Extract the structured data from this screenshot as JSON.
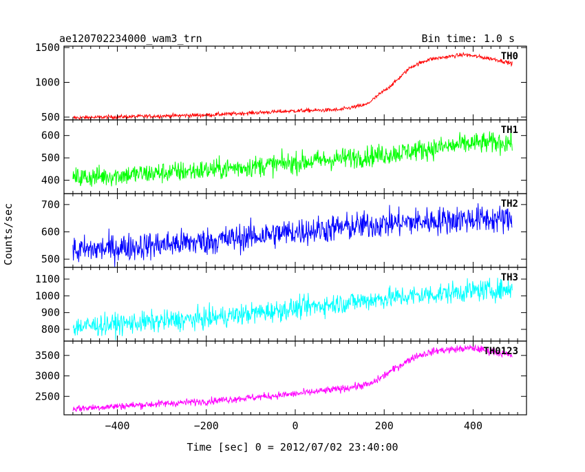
{
  "chart_data": {
    "type": "line",
    "title": "ae120702234000_wam3_trn",
    "subtitle": "Bin time: 1.0 s",
    "xlabel": "Time [sec] 0 = 2012/07/02 23:40:00",
    "ylabel": "Counts/sec",
    "xlim": [
      -520,
      520
    ],
    "xticks": [
      -400,
      -200,
      0,
      200,
      400
    ],
    "xtick_labels": [
      "−400",
      "−200",
      "0",
      "200",
      "400"
    ],
    "x_range": [
      -500,
      488
    ],
    "grid": false,
    "panels": [
      {
        "name": "TH0",
        "color": "#ff0000",
        "ylim": [
          460,
          1520
        ],
        "yticks": [
          500,
          1000,
          1500
        ],
        "ytick_labels": [
          "500",
          "1000",
          "1500"
        ],
        "noise": 14,
        "trend": [
          [
            -500,
            490
          ],
          [
            -200,
            530
          ],
          [
            0,
            590
          ],
          [
            100,
            605
          ],
          [
            160,
            680
          ],
          [
            220,
            980
          ],
          [
            260,
            1220
          ],
          [
            300,
            1330
          ],
          [
            380,
            1400
          ],
          [
            450,
            1330
          ],
          [
            488,
            1270
          ]
        ]
      },
      {
        "name": "TH1",
        "color": "#00ff00",
        "ylim": [
          340,
          670
        ],
        "yticks": [
          400,
          500,
          600
        ],
        "ytick_labels": [
          "400",
          "500",
          "600"
        ],
        "noise": 24,
        "trend": [
          [
            -500,
            410
          ],
          [
            -200,
            445
          ],
          [
            0,
            478
          ],
          [
            200,
            515
          ],
          [
            400,
            565
          ],
          [
            488,
            570
          ]
        ]
      },
      {
        "name": "TH2",
        "color": "#0000ff",
        "ylim": [
          470,
          740
        ],
        "yticks": [
          500,
          600,
          700
        ],
        "ytick_labels": [
          "500",
          "600",
          "700"
        ],
        "noise": 26,
        "trend": [
          [
            -500,
            530
          ],
          [
            -200,
            565
          ],
          [
            0,
            600
          ],
          [
            200,
            630
          ],
          [
            400,
            648
          ],
          [
            488,
            645
          ]
        ]
      },
      {
        "name": "TH3",
        "color": "#00ffff",
        "ylim": [
          730,
          1170
        ],
        "yticks": [
          800,
          900,
          1000,
          1100
        ],
        "ytick_labels": [
          "800",
          "900",
          "1000",
          "1100"
        ],
        "noise": 32,
        "trend": [
          [
            -500,
            815
          ],
          [
            -200,
            865
          ],
          [
            0,
            925
          ],
          [
            200,
            985
          ],
          [
            400,
            1030
          ],
          [
            488,
            1040
          ]
        ]
      },
      {
        "name": "TH0123",
        "color": "#ff00ff",
        "ylim": [
          2050,
          3850
        ],
        "yticks": [
          2500,
          3000,
          3500
        ],
        "ytick_labels": [
          "2500",
          "3000",
          "3500"
        ],
        "noise": 45,
        "trend": [
          [
            -500,
            2200
          ],
          [
            -200,
            2380
          ],
          [
            0,
            2560
          ],
          [
            100,
            2680
          ],
          [
            170,
            2800
          ],
          [
            220,
            3150
          ],
          [
            270,
            3480
          ],
          [
            320,
            3620
          ],
          [
            400,
            3680
          ],
          [
            450,
            3580
          ],
          [
            488,
            3500
          ]
        ]
      }
    ]
  }
}
